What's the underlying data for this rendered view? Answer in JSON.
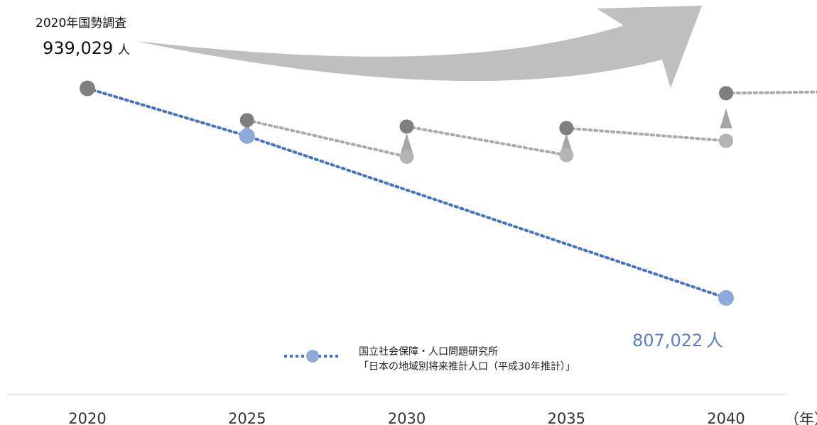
{
  "chart_data": {
    "type": "line",
    "x": [
      2020,
      2025,
      2030,
      2035,
      2040
    ],
    "x_unit_label": "（年）",
    "start_annotation": {
      "label": "2020年国勢調査",
      "value_text": "939,029",
      "unit": "人",
      "value": 939029
    },
    "end_annotation": {
      "value_text": "807,022",
      "unit": "人",
      "value": 807022
    },
    "ylim": [
      790000,
      950000
    ],
    "series": [
      {
        "name": "国立社会保障・人口問題研究所「日本の地域別将来推計人口（平成30年推計）」",
        "legend_line1": "国立社会保障・人口問題研究所",
        "legend_line2": "「日本の地域別将来推計人口（平成30年推計）」",
        "color": "#4472c4",
        "marker_color": "#8eaadb",
        "x": [
          2020,
          2025,
          2040
        ],
        "values": [
          939029,
          909000,
          807022
        ]
      },
      {
        "color": "#aaaaaa",
        "marker_color": "#7f7f7f",
        "low_marker_color": "#b4b4b4",
        "segments": [
          {
            "x": [
              2025,
              2030
            ],
            "values": [
              919000,
              896000
            ]
          },
          {
            "x": [
              2030,
              2035
            ],
            "values": [
              915000,
              897000
            ]
          },
          {
            "x": [
              2035,
              2040
            ],
            "values": [
              914000,
              906000
            ]
          },
          {
            "x": [
              2040,
              2043.7
            ],
            "values": [
              936000,
              937000
            ]
          }
        ]
      }
    ],
    "upgrade_arrows": [
      {
        "x": 2025,
        "from": 909000,
        "to": 919000
      },
      {
        "x": 2030,
        "from": 896000,
        "to": 915000
      },
      {
        "x": 2035,
        "from": 897000,
        "to": 914000
      },
      {
        "x": 2040,
        "from": 906000,
        "to": 936000
      }
    ],
    "colors": {
      "axis": "#d9d9d9",
      "big_arrow": "#bfbfbf",
      "small_arrow": "#a6a6a6"
    },
    "legend_position": "bottom-center"
  }
}
